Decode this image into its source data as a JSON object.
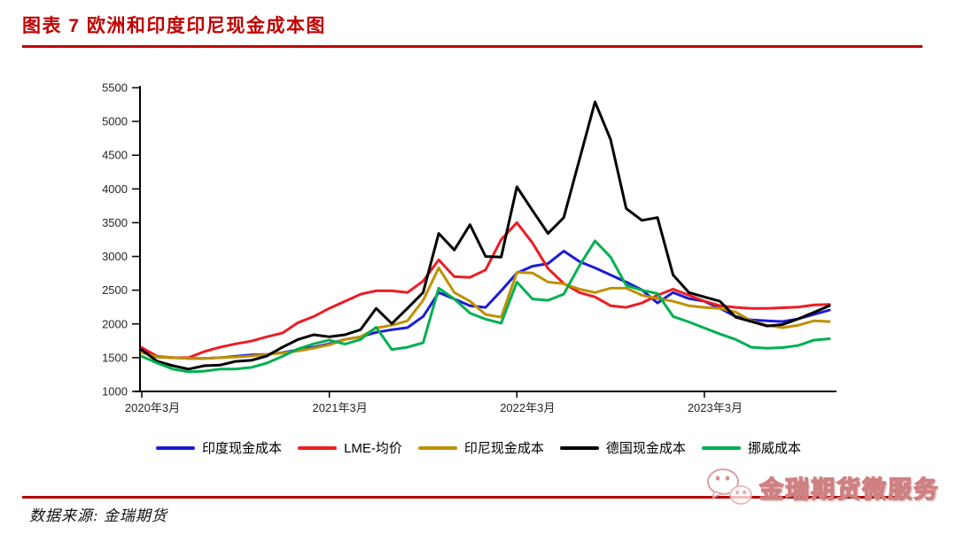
{
  "header": {
    "title": "图表 7 欧洲和印度印尼现金成本图"
  },
  "footer": {
    "source": "数据来源: 金瑞期货",
    "watermark": "金瑞期货微服务"
  },
  "colors": {
    "title_red": "#C00000",
    "rule_red": "#B40606",
    "axis_line": "#000000",
    "axis_text": "#262626"
  },
  "chart_data": {
    "type": "line",
    "title": "",
    "xlabel": "",
    "ylabel": "",
    "grid": false,
    "legend_position": "bottom",
    "x_unit": "month",
    "x_start": "2020-03",
    "x_end": "2023-11",
    "ylim": [
      1000,
      5500
    ],
    "y_ticks": [
      1000,
      1500,
      2000,
      2500,
      3000,
      3500,
      4000,
      4500,
      5000,
      5500
    ],
    "x_ticks": [
      {
        "index": 0,
        "label": "2020年3月"
      },
      {
        "index": 12,
        "label": "2021年3月"
      },
      {
        "index": 24,
        "label": "2022年3月"
      },
      {
        "index": 36,
        "label": "2023年3月"
      }
    ],
    "series": [
      {
        "name": "印度现金成本",
        "color": "#1C1CD6",
        "values": [
          1590,
          1510,
          1500,
          1490,
          1490,
          1500,
          1520,
          1540,
          1550,
          1575,
          1615,
          1655,
          1705,
          1770,
          1810,
          1875,
          1915,
          1945,
          2110,
          2465,
          2370,
          2270,
          2245,
          2490,
          2755,
          2855,
          2895,
          3080,
          2925,
          2830,
          2725,
          2620,
          2505,
          2310,
          2465,
          2375,
          2335,
          2230,
          2110,
          2060,
          2045,
          2035,
          2075,
          2140,
          2205
        ]
      },
      {
        "name": "LME-均价",
        "color": "#ED1C24",
        "values": [
          1650,
          1520,
          1500,
          1500,
          1590,
          1655,
          1705,
          1745,
          1810,
          1865,
          2020,
          2110,
          2230,
          2335,
          2440,
          2490,
          2490,
          2465,
          2635,
          2950,
          2700,
          2690,
          2800,
          3250,
          3500,
          3200,
          2820,
          2600,
          2465,
          2400,
          2270,
          2245,
          2310,
          2425,
          2515,
          2425,
          2335,
          2270,
          2245,
          2230,
          2230,
          2240,
          2250,
          2280,
          2290
        ]
      },
      {
        "name": "印尼现金成本",
        "color": "#BF9000",
        "values": [
          1575,
          1510,
          1500,
          1490,
          1490,
          1500,
          1510,
          1525,
          1550,
          1570,
          1600,
          1640,
          1690,
          1770,
          1810,
          1940,
          1980,
          2045,
          2350,
          2830,
          2465,
          2335,
          2140,
          2100,
          2765,
          2755,
          2620,
          2595,
          2515,
          2465,
          2530,
          2530,
          2425,
          2375,
          2335,
          2270,
          2245,
          2230,
          2175,
          2045,
          1980,
          1945,
          1980,
          2045,
          2035
        ]
      },
      {
        "name": "德国现金成本",
        "color": "#000000",
        "values": [
          1615,
          1445,
          1380,
          1330,
          1380,
          1390,
          1445,
          1460,
          1525,
          1655,
          1770,
          1840,
          1810,
          1840,
          1915,
          2230,
          2005,
          2230,
          2465,
          3340,
          3095,
          3470,
          3000,
          2990,
          4030,
          3680,
          3340,
          3575,
          4430,
          5290,
          4730,
          3710,
          3535,
          3575,
          2725,
          2465,
          2400,
          2335,
          2100,
          2035,
          1970,
          1990,
          2075,
          2170,
          2270
        ]
      },
      {
        "name": "挪威成本",
        "color": "#00B050",
        "values": [
          1520,
          1420,
          1330,
          1290,
          1300,
          1330,
          1330,
          1355,
          1420,
          1520,
          1630,
          1705,
          1760,
          1700,
          1770,
          1950,
          1620,
          1655,
          1720,
          2530,
          2370,
          2160,
          2070,
          2010,
          2620,
          2370,
          2350,
          2440,
          2860,
          3230,
          2990,
          2570,
          2500,
          2450,
          2110,
          2030,
          1940,
          1850,
          1770,
          1655,
          1640,
          1650,
          1680,
          1760,
          1780
        ]
      }
    ]
  }
}
